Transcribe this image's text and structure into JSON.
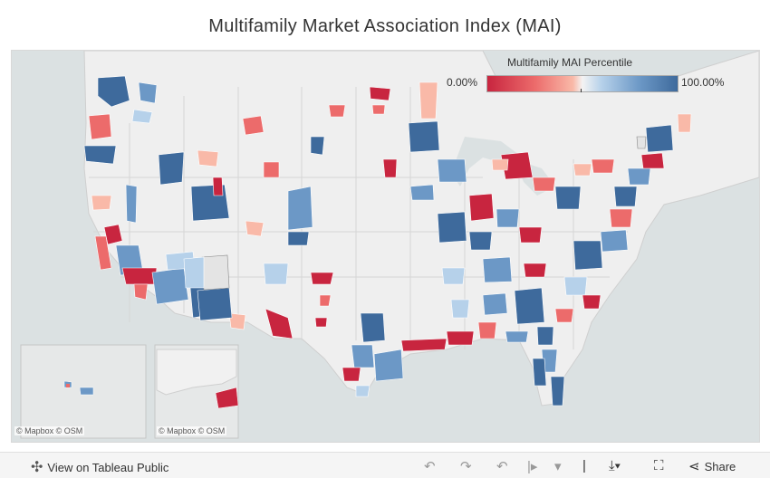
{
  "title": "Multifamily Market Association Index (MAI)",
  "legend": {
    "title": "Multifamily MAI Percentile",
    "min_label": "0.00%",
    "max_label": "100.00%",
    "colors": [
      "#c8253f",
      "#ec6b6b",
      "#f9b9a8",
      "#f3f3f3",
      "#b6d1ea",
      "#6c98c6",
      "#3e6a9c"
    ]
  },
  "attribution": {
    "main": "© Mapbox  © OSM",
    "inset_hawaii": "© Mapbox  © OSM",
    "inset_alaska": "© Mapbox  © OSM"
  },
  "toolbar": {
    "view_label": "View on Tableau Public",
    "share_label": "Share",
    "icons": [
      "tableau-logo-icon",
      "undo-icon",
      "redo-icon",
      "revert-icon",
      "pause-icon",
      "download-icon",
      "fullscreen-icon",
      "share-icon"
    ]
  },
  "colors": {
    "land": "#f1f1f1",
    "water": "#dde3e4",
    "red": "#c8253f",
    "blue": "#3e6a9c"
  }
}
